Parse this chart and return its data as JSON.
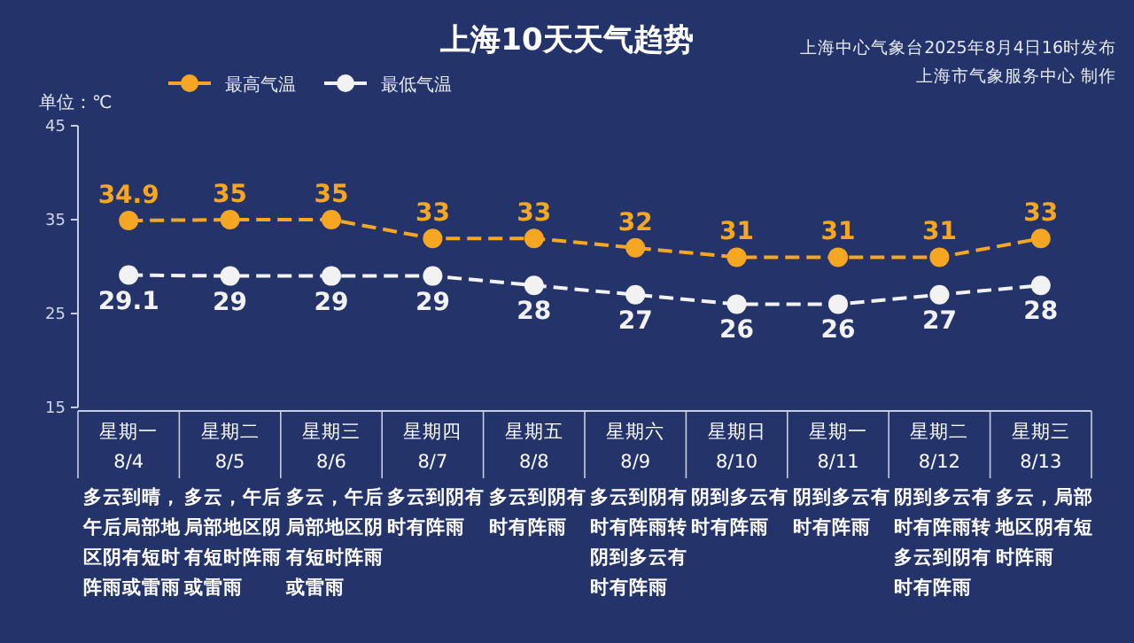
{
  "chart_data": {
    "type": "line",
    "title": "上海10天天气趋势",
    "ylabel": "单位：℃",
    "categories": [
      "星期一\n8/4",
      "星期二\n8/5",
      "星期三\n8/6",
      "星期四\n8/7",
      "星期五\n8/8",
      "星期六\n8/9",
      "星期日\n8/10",
      "星期一\n8/11",
      "星期二\n8/12",
      "星期三\n8/13"
    ],
    "series": [
      {
        "name": "最高气温",
        "color": "#f5a623",
        "values": [
          34.9,
          35,
          35,
          33,
          33,
          32,
          31,
          31,
          31,
          33
        ]
      },
      {
        "name": "最低气温",
        "color": "#f2f2f2",
        "values": [
          29.1,
          29,
          29,
          29,
          28,
          27,
          26,
          26,
          27,
          28
        ]
      }
    ],
    "ylim": [
      15,
      45
    ],
    "yticks": [
      15,
      25,
      35,
      45
    ],
    "data_labels": true,
    "legend": "top left",
    "marker": "circle",
    "line_style": "dashed",
    "grid": false,
    "annotations": [
      "上海中心气象台2025年8月4日16时发布",
      "上海市气象服务中心 制作",
      "多云到晴，午后局部地区阴有短时阵雨或雷雨",
      "多云，午后局部地区阴有短时阵雨或雷雨",
      "多云，午后局部地区阴有短时阵雨或雷雨",
      "多云到阴有时有阵雨",
      "多云到阴有时有阵雨",
      "多云到阴有时有阵雨转阴到多云有时有阵雨",
      "阴到多云有时有阵雨",
      "阴到多云有时有阵雨",
      "阴到多云有时有阵雨转多云到阴有时有阵雨",
      "多云，局部地区阴有短时阵雨"
    ]
  }
}
